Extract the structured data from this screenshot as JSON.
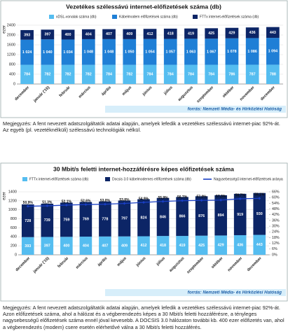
{
  "chart_data": [
    {
      "type": "bar",
      "stacked": true,
      "title": "Vezetékes szélessávú internet-előfizetések száma (db)",
      "ylabel": "ezer",
      "categories": [
        "december",
        "január ('15)",
        "február",
        "március",
        "április",
        "május",
        "június",
        "július",
        "augusztus",
        "szeptember",
        "október",
        "november",
        "december"
      ],
      "series": [
        {
          "name": "xDSL-vonalak száma (db)",
          "color": "#55bdf0",
          "values": [
            784,
            782,
            782,
            782,
            784,
            782,
            784,
            784,
            784,
            784,
            786,
            787,
            788
          ]
        },
        {
          "name": "Kábelmodem előfizetések száma (db)",
          "color": "#1f7fd6",
          "values": [
            1024,
            1040,
            1034,
            1048,
            1048,
            1050,
            1054,
            1057,
            1063,
            1067,
            1078,
            1086,
            1094
          ],
          "value_labels": [
            "1 024",
            "1 040",
            "1 034",
            "1 048",
            "1 048",
            "1 050",
            "1 054",
            "1 057",
            "1 063",
            "1 067",
            "1 078",
            "1 086",
            "1 094"
          ]
        },
        {
          "name": "FTTx internet-előfizetések száma (db)",
          "color": "#0c2566",
          "values": [
            393,
            397,
            400,
            404,
            407,
            409,
            412,
            418,
            419,
            425,
            429,
            436,
            443
          ]
        }
      ],
      "ylim": [
        0,
        2400
      ],
      "yticks": [
        0,
        400,
        800,
        1200,
        1600,
        2000,
        2400
      ],
      "grid": true,
      "source": "forrás: Nemzeti Média- és Hírközlési Hatóság"
    },
    {
      "type": "bar",
      "stacked": true,
      "title": "30 Mbit/s feletti internet-hozzáférésre képes előfizetések száma",
      "ylabel": "ezer",
      "categories": [
        "december",
        "január ('15)",
        "február",
        "március",
        "április",
        "május",
        "június",
        "július",
        "augusztus",
        "szeptember",
        "október",
        "november",
        "december"
      ],
      "series": [
        {
          "name": "FTTx internet-előfizetések száma (db)",
          "color": "#55bdf0",
          "values": [
            393,
            397,
            400,
            404,
            407,
            409,
            412,
            418,
            419,
            425,
            429,
            436,
            443
          ]
        },
        {
          "name": "Docsis 3.0 kábelmodemes előfizetések száma (db)",
          "color": "#0c2566",
          "values": [
            728,
            739,
            759,
            769,
            778,
            797,
            824,
            846,
            866,
            876,
            894,
            919,
            930
          ]
        },
        {
          "name": "Nagysebességű internet-előfizetések aránya",
          "color": "#1a3fc4",
          "axis": "y2",
          "values": [
            50.9,
            51.3,
            52.1,
            52.6,
            53.0,
            53.8,
            54.9,
            55.9,
            56.7,
            57.0,
            57.3,
            58.7,
            59.1
          ],
          "value_labels": [
            "50,9%",
            "51,3%",
            "52,1%",
            "52,6%",
            "53,0%",
            "53,8%",
            "54,9%",
            "55,9%",
            "56,7%",
            "57,0%",
            "57,3%",
            "58,7%",
            "59,1%"
          ]
        }
      ],
      "ylim": [
        0,
        1400
      ],
      "yticks": [
        0,
        200,
        400,
        600,
        800,
        1000,
        1200,
        1400
      ],
      "grid": true,
      "y2lim": [
        0,
        66
      ],
      "y2ticks": [
        {
          "value": 0,
          "label": "0%"
        },
        {
          "value": 6,
          "label": "6%"
        },
        {
          "value": 12,
          "label": "12%"
        },
        {
          "value": 18,
          "label": "18%"
        },
        {
          "value": 24,
          "label": "24%"
        },
        {
          "value": 30,
          "label": "30%"
        },
        {
          "value": 36,
          "label": "36%"
        },
        {
          "value": 42,
          "label": "42%"
        },
        {
          "value": 48,
          "label": "48%"
        },
        {
          "value": 54,
          "label": "54%"
        },
        {
          "value": 60,
          "label": "60%"
        },
        {
          "value": 66,
          "label": "66%"
        }
      ],
      "source": "forrás: Nemzeti Média- és Hírközlési Hatóság"
    }
  ],
  "notes": [
    "Megjegyzés: A fent nevezett adatszolgáltatók adatai alapján, amelyek lefedik a vezetékes szélessávú internet-piac 92%-át. Az egyéb (pl. vezetéknélküli) szélessávú technológiák nélkül.",
    "Megjegyzés: A fent nevezett adatszolgáltatók adatai alapján, amelyek lefedik a vezetékes szélessávú internet-piac 92%-át. Azon előfizetések száma, ahol a hálózat és a végberendezés képes a 30 Mbit/s feletti hozzáférésre, a tényleges nagysebességű előfizetések száma ennél jóval kevesebb. A DOCSIS 3.0 hálózaton további kb. 400 ezer előfizetés van, ahol a végberendezés (modem) csere esetén elérhetővé válna a 30 Mbit/s feletti hozzáférés."
  ]
}
